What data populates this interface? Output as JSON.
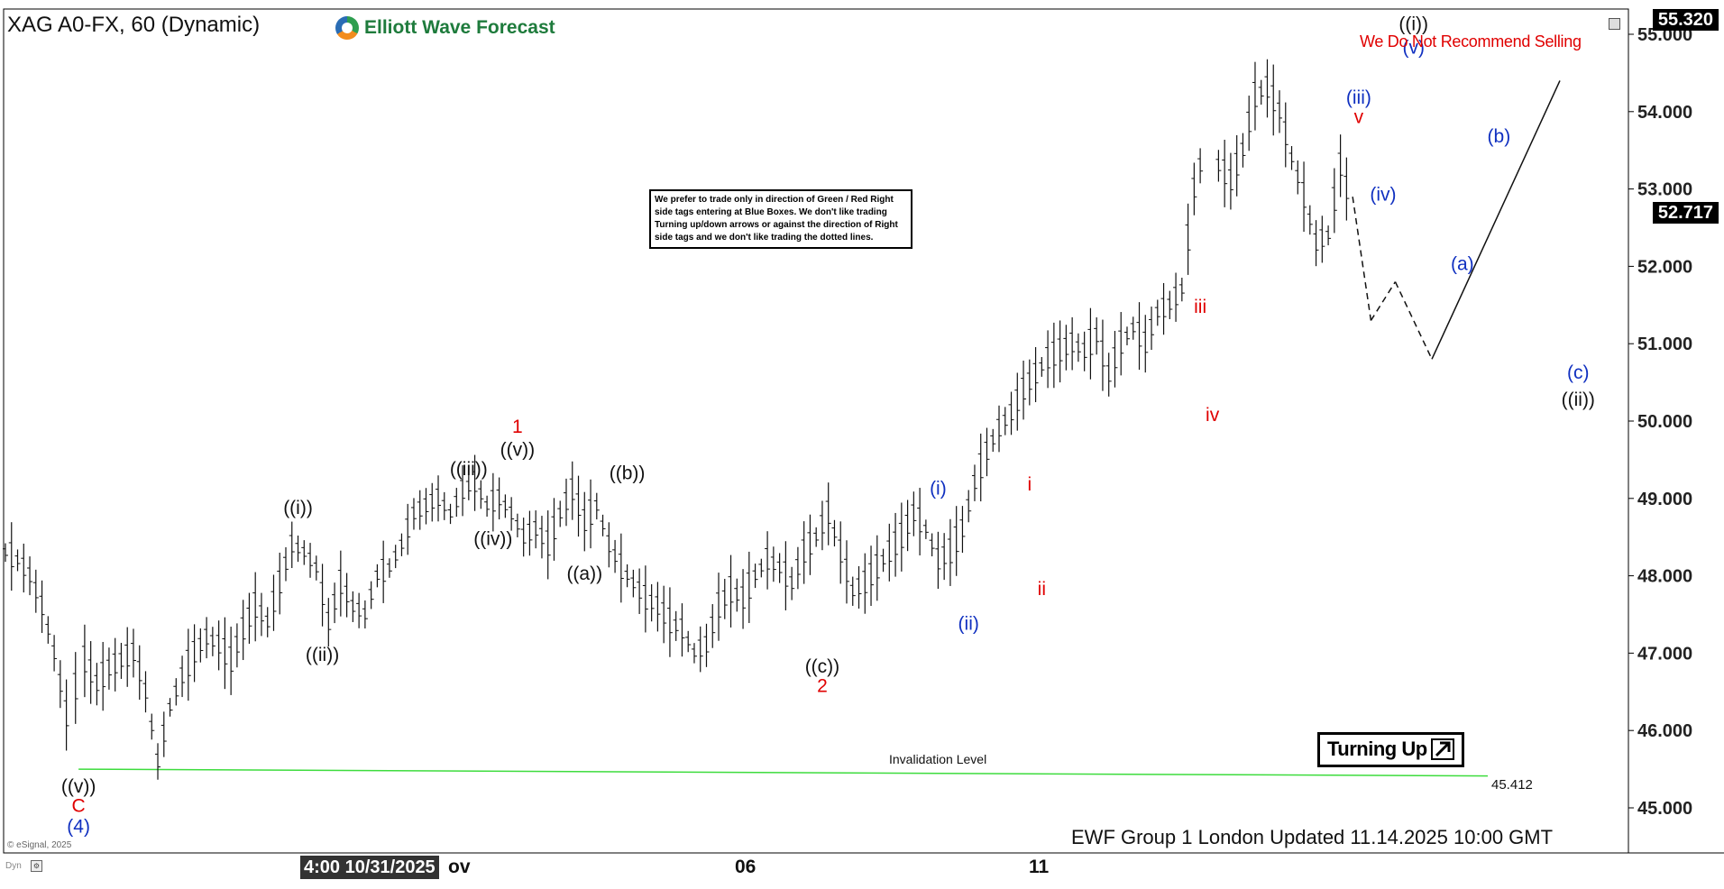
{
  "header": {
    "symbol_title": "XAG A0-FX, 60 (Dynamic)",
    "brand": "Elliott Wave Forecast",
    "warning": "We Do Not Recommend Selling"
  },
  "note_box": {
    "text": "We prefer to trade only in direction of Green / Red Right side tags entering at Blue Boxes. We don't like trading Turning up/down arrows or against the direction of Right side tags and we don't like trading the dotted lines."
  },
  "badge": {
    "label": "Turning Up",
    "icon": "arrow-up-right-icon"
  },
  "invalidation": {
    "label": "Invalidation Level",
    "value": "45.412",
    "color": "#3ddc3d"
  },
  "footer": {
    "text": "EWF Group 1 London Updated 11.14.2025 10:00 GMT"
  },
  "copyright": "© eSignal, 2025",
  "dyn_label": "Dyn",
  "price_axis": {
    "top_tag": "55.320",
    "current_tag": "52.717"
  },
  "time_axis": {
    "highlight": "4:00 10/31/2025",
    "after_highlight": "ov",
    "ticks": [
      "06",
      "11"
    ]
  },
  "colors": {
    "red": "#e00000",
    "blue": "#1030c0",
    "black": "#111111",
    "up_line": "#111111"
  },
  "chart_data": {
    "type": "line",
    "title": "XAG A0-FX, 60 (Dynamic)",
    "xlabel": "",
    "ylabel": "",
    "ylim": [
      44.7,
      55.4
    ],
    "grid": false,
    "y_ticks": [
      "45.000",
      "46.000",
      "47.000",
      "48.000",
      "49.000",
      "50.000",
      "51.000",
      "52.000",
      "53.000",
      "54.000",
      "55.000"
    ],
    "series": [
      {
        "name": "",
        "x": [
          0,
          2,
          4,
          6,
          8,
          10,
          13,
          15,
          17,
          19,
          21,
          23,
          25,
          27,
          29,
          31,
          33,
          35,
          37,
          39,
          41,
          43,
          45,
          47,
          49,
          51,
          53,
          55,
          57,
          59,
          61,
          63,
          65,
          67,
          69,
          71,
          73,
          75,
          77,
          79,
          81,
          83,
          85,
          87,
          89,
          91,
          93,
          95,
          97,
          99,
          101,
          103,
          105,
          107,
          109,
          111,
          113,
          115,
          117,
          119,
          121,
          123,
          125,
          127,
          129,
          131,
          133,
          135,
          137,
          139,
          141,
          143,
          145,
          147,
          149,
          151,
          153,
          155,
          157,
          159,
          161,
          163,
          165,
          167,
          169,
          171,
          173,
          175,
          177,
          179,
          181,
          183,
          185,
          187,
          189,
          191,
          193,
          195,
          197
        ],
        "values": [
          48.3,
          48.2,
          48.0,
          47.6,
          47.0,
          46.2,
          46.9,
          46.6,
          46.8,
          46.9,
          47.0,
          46.5,
          45.6,
          46.3,
          46.7,
          47.0,
          47.2,
          47.1,
          46.9,
          47.3,
          47.6,
          47.4,
          47.9,
          48.4,
          48.3,
          48.1,
          47.4,
          47.9,
          47.6,
          47.5,
          48.0,
          48.1,
          48.4,
          48.8,
          48.9,
          49.0,
          48.8,
          49.1,
          49.2,
          48.9,
          49.0,
          48.8,
          48.5,
          48.6,
          48.4,
          48.8,
          49.1,
          48.7,
          48.9,
          48.4,
          48.1,
          47.9,
          47.7,
          47.6,
          47.4,
          47.3,
          47.0,
          47.1,
          47.6,
          47.8,
          47.7,
          48.0,
          48.2,
          48.1,
          47.9,
          48.3,
          48.5,
          48.8,
          48.3,
          47.8,
          47.9,
          48.1,
          48.3,
          48.5,
          48.8,
          48.6,
          48.2,
          48.3,
          48.6,
          49.2,
          49.6,
          49.9,
          50.1,
          50.4,
          50.6,
          50.8,
          50.9,
          51.0,
          50.9,
          51.1,
          50.6,
          51.0,
          51.2,
          51.0,
          51.4,
          51.5,
          51.7,
          53.0,
          53.6
        ]
      },
      {
        "name": "",
        "x": [
          199,
          201,
          203,
          205,
          207,
          209,
          211,
          213,
          215,
          217,
          219,
          221
        ],
        "values": [
          53.3,
          53.1,
          53.5,
          54.2,
          54.3,
          54.0,
          53.4,
          52.9,
          52.3,
          52.4,
          53.3,
          52.7
        ]
      },
      {
        "name": "",
        "x": [
          221,
          224,
          228,
          234,
          255
        ],
        "values": [
          52.9,
          51.3,
          51.8,
          50.8,
          54.4
        ]
      }
    ],
    "labels": [
      {
        "text": "((v))",
        "x": 12,
        "y": 45.2,
        "color": "black"
      },
      {
        "text": "C",
        "x": 12,
        "y": 44.95,
        "color": "red"
      },
      {
        "text": "(4)",
        "x": 12,
        "y": 44.68,
        "color": "blue"
      },
      {
        "text": "((i))",
        "x": 48,
        "y": 48.8,
        "color": "black"
      },
      {
        "text": "((ii))",
        "x": 52,
        "y": 46.9,
        "color": "black"
      },
      {
        "text": "((iii))",
        "x": 76,
        "y": 49.3,
        "color": "black"
      },
      {
        "text": "((iv))",
        "x": 80,
        "y": 48.4,
        "color": "black"
      },
      {
        "text": "((v))",
        "x": 84,
        "y": 49.55,
        "color": "black"
      },
      {
        "text": "1",
        "x": 84,
        "y": 49.85,
        "color": "red"
      },
      {
        "text": "((a))",
        "x": 95,
        "y": 47.95,
        "color": "black"
      },
      {
        "text": "((b))",
        "x": 102,
        "y": 49.25,
        "color": "black"
      },
      {
        "text": "((c))",
        "x": 134,
        "y": 46.75,
        "color": "black"
      },
      {
        "text": "2",
        "x": 134,
        "y": 46.5,
        "color": "red"
      },
      {
        "text": "(i)",
        "x": 153,
        "y": 49.05,
        "color": "blue"
      },
      {
        "text": "(ii)",
        "x": 158,
        "y": 47.3,
        "color": "blue"
      },
      {
        "text": "i",
        "x": 168,
        "y": 49.1,
        "color": "red"
      },
      {
        "text": "ii",
        "x": 170,
        "y": 47.75,
        "color": "red"
      },
      {
        "text": "iii",
        "x": 196,
        "y": 51.4,
        "color": "red"
      },
      {
        "text": "iv",
        "x": 198,
        "y": 50.0,
        "color": "red"
      },
      {
        "text": "(iii)",
        "x": 222,
        "y": 54.1,
        "color": "blue"
      },
      {
        "text": "v",
        "x": 222,
        "y": 53.85,
        "color": "red"
      },
      {
        "text": "(iv)",
        "x": 226,
        "y": 52.85,
        "color": "blue"
      },
      {
        "text": "((i))",
        "x": 231,
        "y": 55.05,
        "color": "black"
      },
      {
        "text": "(v)",
        "x": 231,
        "y": 54.75,
        "color": "blue"
      },
      {
        "text": "(a)",
        "x": 239,
        "y": 51.95,
        "color": "blue"
      },
      {
        "text": "(b)",
        "x": 245,
        "y": 53.6,
        "color": "blue"
      },
      {
        "text": "(c)",
        "x": 258,
        "y": 50.55,
        "color": "blue"
      },
      {
        "text": "((ii))",
        "x": 258,
        "y": 50.2,
        "color": "black"
      }
    ]
  }
}
